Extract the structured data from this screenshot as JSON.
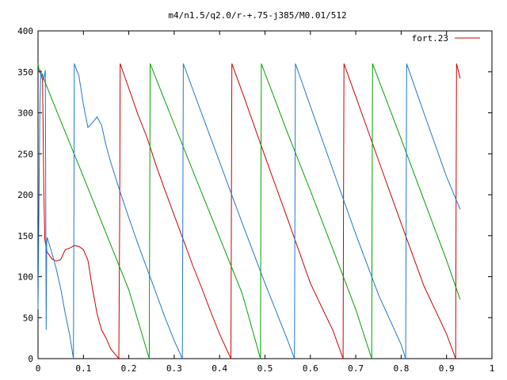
{
  "chart_data": {
    "type": "line",
    "title": "m4/n1.5/q2.0/r-+.75-j385/M0.01/512",
    "xlabel": "",
    "ylabel": "",
    "xlim": [
      0,
      1
    ],
    "ylim": [
      0,
      400
    ],
    "x_ticks": [
      "0",
      "0.1",
      "0.2",
      "0.3",
      "0.4",
      "0.5",
      "0.6",
      "0.7",
      "0.8",
      "0.9",
      "1"
    ],
    "y_ticks": [
      "0",
      "50",
      "100",
      "150",
      "200",
      "250",
      "300",
      "350",
      "400"
    ],
    "grid": false,
    "legend_position": "top-right",
    "legend": [
      {
        "label": "fort.23",
        "color": "#cc0000"
      }
    ],
    "series": [
      {
        "color": "#cc0000",
        "points": [
          [
            0.0,
            350
          ],
          [
            0.005,
            352
          ],
          [
            0.01,
            340
          ],
          [
            0.013,
            200
          ],
          [
            0.015,
            145
          ],
          [
            0.02,
            130
          ],
          [
            0.03,
            122
          ],
          [
            0.04,
            119
          ],
          [
            0.05,
            121
          ],
          [
            0.06,
            133
          ],
          [
            0.07,
            135
          ],
          [
            0.08,
            138
          ],
          [
            0.09,
            137
          ],
          [
            0.1,
            133
          ],
          [
            0.11,
            120
          ],
          [
            0.12,
            85
          ],
          [
            0.13,
            55
          ],
          [
            0.14,
            35
          ],
          [
            0.15,
            25
          ],
          [
            0.16,
            12
          ],
          [
            0.178,
            0
          ],
          [
            0.18,
            180
          ],
          [
            0.181,
            360
          ],
          [
            0.2,
            330
          ],
          [
            0.22,
            298
          ],
          [
            0.24,
            270
          ],
          [
            0.26,
            236
          ],
          [
            0.28,
            205
          ],
          [
            0.3,
            175
          ],
          [
            0.32,
            145
          ],
          [
            0.34,
            115
          ],
          [
            0.36,
            87
          ],
          [
            0.38,
            58
          ],
          [
            0.4,
            30
          ],
          [
            0.425,
            0
          ],
          [
            0.426,
            180
          ],
          [
            0.427,
            360
          ],
          [
            0.45,
            325
          ],
          [
            0.5,
            247
          ],
          [
            0.55,
            170
          ],
          [
            0.6,
            92
          ],
          [
            0.65,
            34
          ],
          [
            0.672,
            0
          ],
          [
            0.673,
            180
          ],
          [
            0.674,
            360
          ],
          [
            0.7,
            320
          ],
          [
            0.75,
            242
          ],
          [
            0.8,
            165
          ],
          [
            0.85,
            89
          ],
          [
            0.9,
            30
          ],
          [
            0.92,
            0
          ],
          [
            0.921,
            180
          ],
          [
            0.922,
            360
          ],
          [
            0.93,
            342
          ]
        ]
      },
      {
        "color": "#00a000",
        "points": [
          [
            0.0,
            360
          ],
          [
            0.003,
            350
          ],
          [
            0.01,
            345
          ],
          [
            0.05,
            290
          ],
          [
            0.1,
            222
          ],
          [
            0.15,
            153
          ],
          [
            0.2,
            84
          ],
          [
            0.245,
            0
          ],
          [
            0.246,
            180
          ],
          [
            0.247,
            360
          ],
          [
            0.3,
            286
          ],
          [
            0.35,
            217
          ],
          [
            0.4,
            148
          ],
          [
            0.45,
            79
          ],
          [
            0.49,
            0
          ],
          [
            0.491,
            180
          ],
          [
            0.492,
            360
          ],
          [
            0.55,
            275
          ],
          [
            0.6,
            205
          ],
          [
            0.65,
            133
          ],
          [
            0.7,
            60
          ],
          [
            0.735,
            0
          ],
          [
            0.736,
            180
          ],
          [
            0.737,
            360
          ],
          [
            0.8,
            268
          ],
          [
            0.85,
            194
          ],
          [
            0.9,
            120
          ],
          [
            0.93,
            72
          ]
        ]
      },
      {
        "color": "#1f77cc",
        "points": [
          [
            0.0,
            60
          ],
          [
            0.002,
            180
          ],
          [
            0.004,
            300
          ],
          [
            0.006,
            350
          ],
          [
            0.008,
            345
          ],
          [
            0.01,
            348
          ],
          [
            0.012,
            340
          ],
          [
            0.014,
            345
          ],
          [
            0.016,
            352
          ],
          [
            0.018,
            35
          ],
          [
            0.019,
            140
          ],
          [
            0.02,
            148
          ],
          [
            0.03,
            130
          ],
          [
            0.04,
            110
          ],
          [
            0.05,
            85
          ],
          [
            0.06,
            55
          ],
          [
            0.07,
            28
          ],
          [
            0.078,
            0
          ],
          [
            0.079,
            180
          ],
          [
            0.08,
            360
          ],
          [
            0.09,
            345
          ],
          [
            0.1,
            310
          ],
          [
            0.11,
            282
          ],
          [
            0.12,
            288
          ],
          [
            0.13,
            295
          ],
          [
            0.14,
            285
          ],
          [
            0.15,
            260
          ],
          [
            0.16,
            240
          ],
          [
            0.18,
            205
          ],
          [
            0.2,
            172
          ],
          [
            0.22,
            140
          ],
          [
            0.24,
            110
          ],
          [
            0.26,
            80
          ],
          [
            0.28,
            50
          ],
          [
            0.3,
            22
          ],
          [
            0.318,
            0
          ],
          [
            0.319,
            180
          ],
          [
            0.32,
            360
          ],
          [
            0.35,
            315
          ],
          [
            0.4,
            240
          ],
          [
            0.45,
            165
          ],
          [
            0.5,
            92
          ],
          [
            0.55,
            22
          ],
          [
            0.565,
            0
          ],
          [
            0.566,
            180
          ],
          [
            0.567,
            360
          ],
          [
            0.6,
            308
          ],
          [
            0.65,
            230
          ],
          [
            0.7,
            152
          ],
          [
            0.75,
            78
          ],
          [
            0.8,
            17
          ],
          [
            0.81,
            0
          ],
          [
            0.811,
            180
          ],
          [
            0.812,
            360
          ],
          [
            0.85,
            300
          ],
          [
            0.9,
            222
          ],
          [
            0.93,
            182
          ]
        ]
      }
    ]
  }
}
